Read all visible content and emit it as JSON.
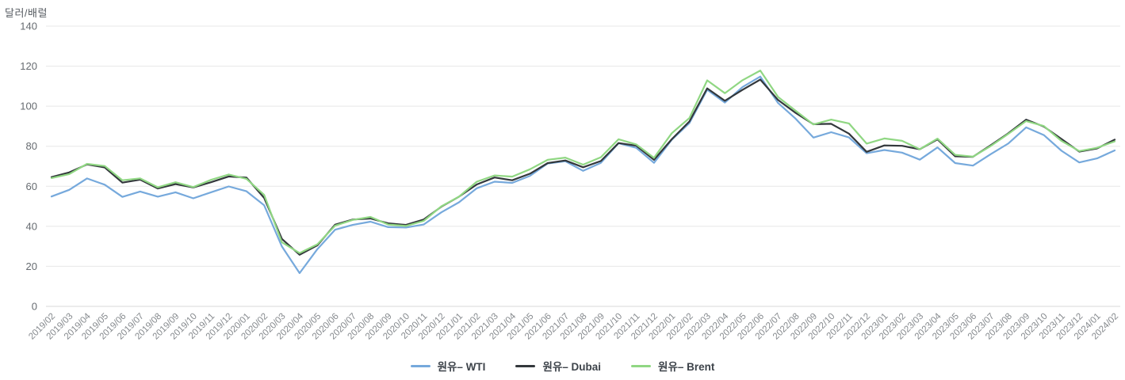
{
  "chart_data": {
    "type": "line",
    "title": "",
    "ylabel": "달러/배럴",
    "xlabel": "",
    "ylim": [
      0,
      140
    ],
    "ytick_step": 20,
    "grid": true,
    "legend_position": "bottom",
    "categories": [
      "2019/02",
      "2019/03",
      "2019/04",
      "2019/05",
      "2019/06",
      "2019/07",
      "2019/08",
      "2019/09",
      "2019/10",
      "2019/11",
      "2019/12",
      "2020/01",
      "2020/02",
      "2020/03",
      "2020/04",
      "2020/05",
      "2020/06",
      "2020/07",
      "2020/08",
      "2020/09",
      "2020/10",
      "2020/11",
      "2020/12",
      "2021/01",
      "2021/02",
      "2021/03",
      "2021/04",
      "2021/05",
      "2021/06",
      "2021/07",
      "2021/08",
      "2021/09",
      "2021/10",
      "2021/11",
      "2021/12",
      "2022/01",
      "2022/02",
      "2022/03",
      "2022/04",
      "2022/05",
      "2022/06",
      "2022/07",
      "2022/08",
      "2022/09",
      "2022/10",
      "2022/11",
      "2022/12",
      "2023/01",
      "2023/02",
      "2023/03",
      "2023/04",
      "2023/05",
      "2023/06",
      "2023/07",
      "2023/08",
      "2023/09",
      "2023/10",
      "2023/11",
      "2023/12",
      "2024/01",
      "2024/02"
    ],
    "series": [
      {
        "name": "원유– WTI",
        "color": "#76a9dc",
        "values": [
          54.9,
          58.2,
          63.9,
          60.8,
          54.7,
          57.4,
          54.8,
          57.0,
          54.0,
          57.0,
          59.9,
          57.5,
          50.5,
          29.9,
          16.6,
          28.6,
          38.3,
          40.7,
          42.3,
          39.6,
          39.4,
          40.9,
          47.0,
          52.0,
          59.0,
          62.3,
          61.7,
          65.2,
          71.4,
          72.5,
          67.7,
          71.7,
          81.5,
          79.2,
          71.7,
          83.2,
          91.6,
          108.2,
          101.8,
          109.6,
          114.8,
          101.6,
          93.7,
          84.3,
          87.0,
          84.4,
          76.5,
          78.1,
          76.8,
          73.3,
          79.4,
          71.6,
          70.3,
          76.0,
          81.4,
          89.4,
          85.6,
          77.7,
          71.9,
          73.9,
          77.9
        ]
      },
      {
        "name": "원유– Dubai",
        "color": "#33383c",
        "values": [
          64.6,
          66.9,
          70.9,
          69.4,
          61.8,
          63.3,
          58.9,
          61.1,
          59.4,
          62.0,
          64.9,
          64.3,
          54.2,
          33.7,
          25.8,
          30.5,
          40.8,
          43.4,
          43.9,
          41.5,
          40.7,
          43.4,
          49.8,
          54.8,
          60.9,
          64.4,
          63.0,
          66.3,
          71.6,
          72.9,
          69.5,
          72.6,
          81.6,
          80.3,
          73.2,
          83.5,
          92.4,
          108.9,
          102.7,
          108.2,
          113.3,
          103.1,
          96.6,
          91.0,
          91.2,
          86.3,
          77.2,
          80.4,
          80.2,
          78.5,
          83.4,
          75.0,
          74.7,
          80.5,
          86.5,
          93.3,
          89.8,
          83.6,
          77.3,
          78.9,
          83.3
        ]
      },
      {
        "name": "원유– Brent",
        "color": "#90d783",
        "values": [
          64.1,
          66.1,
          71.2,
          70.1,
          63.0,
          63.9,
          59.5,
          62.0,
          59.6,
          63.2,
          65.9,
          63.7,
          55.7,
          32.0,
          26.6,
          31.0,
          40.3,
          43.2,
          44.7,
          40.9,
          40.2,
          42.7,
          50.0,
          54.8,
          62.3,
          65.4,
          64.8,
          68.5,
          73.2,
          74.3,
          70.8,
          74.5,
          83.5,
          80.9,
          74.2,
          86.5,
          94.1,
          112.9,
          106.5,
          113.0,
          117.8,
          104.6,
          97.7,
          90.9,
          93.3,
          91.4,
          81.3,
          83.9,
          82.7,
          78.5,
          83.8,
          75.7,
          74.8,
          80.1,
          86.2,
          92.6,
          90.1,
          82.6,
          77.6,
          79.2,
          82.4
        ]
      }
    ]
  }
}
